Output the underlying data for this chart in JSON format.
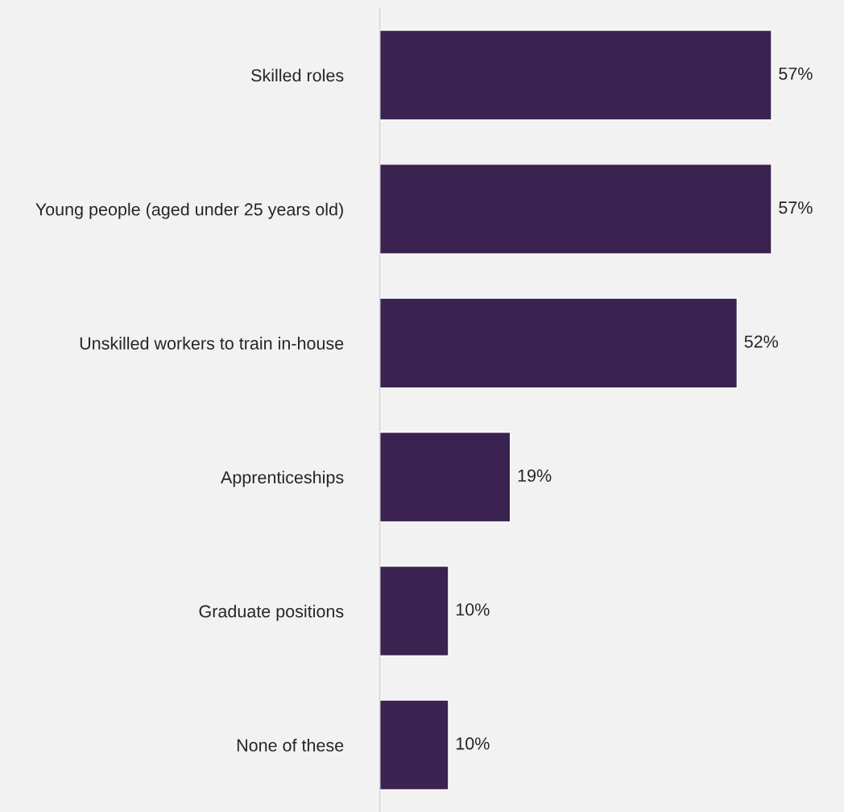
{
  "chart_data": {
    "type": "bar",
    "orientation": "horizontal",
    "categories": [
      "Skilled roles",
      "Young people (aged under 25 years old)",
      "Unskilled workers to train in-house",
      "Apprenticeships",
      "Graduate positions",
      "None of these"
    ],
    "values": [
      57,
      57,
      52,
      19,
      10,
      10
    ],
    "value_labels": [
      "57%",
      "57%",
      "52%",
      "19%",
      "10%",
      "10%"
    ],
    "color": "#3a2350",
    "grid": false,
    "legend": false
  }
}
